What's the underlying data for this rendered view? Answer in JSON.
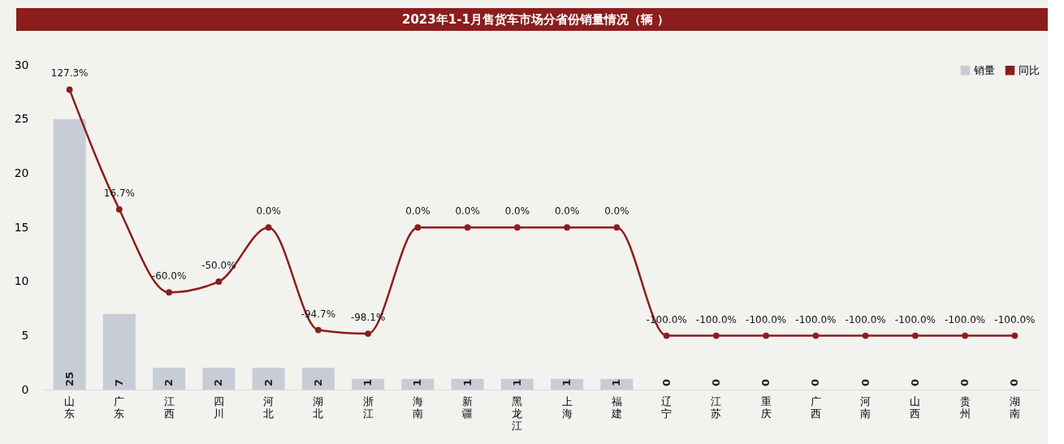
{
  "chart_data": {
    "type": "bar",
    "title": "2023年1-1月售货车市场分省份销量情况（辆 ）",
    "categories": [
      "山东",
      "广东",
      "江西",
      "四川",
      "河北",
      "湖北",
      "浙江",
      "海南",
      "新疆",
      "黑龙江",
      "上海",
      "福建",
      "辽宁",
      "江苏",
      "重庆",
      "广西",
      "河南",
      "山西",
      "贵州",
      "湖南"
    ],
    "series": [
      {
        "name": "销量",
        "color": "#c8ccd6",
        "values": [
          25,
          7,
          2,
          2,
          2,
          2,
          1,
          1,
          1,
          1,
          1,
          1,
          0,
          0,
          0,
          0,
          0,
          0,
          0,
          0
        ],
        "value_labels": [
          "25",
          "7",
          "2",
          "2",
          "2",
          "2",
          "1",
          "1",
          "1",
          "1",
          "1",
          "1",
          "0",
          "0",
          "0",
          "0",
          "0",
          "0",
          "0",
          "0"
        ]
      },
      {
        "name": "同比",
        "type": "line",
        "axis": "y2",
        "color": "#8b1d1d",
        "marker": "circle",
        "values": [
          127.3,
          16.7,
          -60.0,
          -50.0,
          0.0,
          -94.7,
          -98.1,
          0.0,
          0.0,
          0.0,
          0.0,
          0.0,
          -100.0,
          -100.0,
          -100.0,
          -100.0,
          -100.0,
          -100.0,
          -100.0,
          -100.0
        ],
        "value_labels": [
          "127.3%",
          "16.7%",
          "-60.0%",
          "-50.0%",
          "0.0%",
          "-94.7%",
          "-98.1%",
          "0.0%",
          "0.0%",
          "0.0%",
          "0.0%",
          "0.0%",
          "-100.0%",
          "-100.0%",
          "-100.0%",
          "-100.0%",
          "-100.0%",
          "-100.0%",
          "-100.0%",
          "-100.0%"
        ]
      }
    ],
    "ylim": [
      0,
      30
    ],
    "yticks": [
      0,
      5,
      10,
      15,
      20,
      25,
      30
    ],
    "tick_labels": "xy",
    "grid": false,
    "legend": "top right"
  }
}
